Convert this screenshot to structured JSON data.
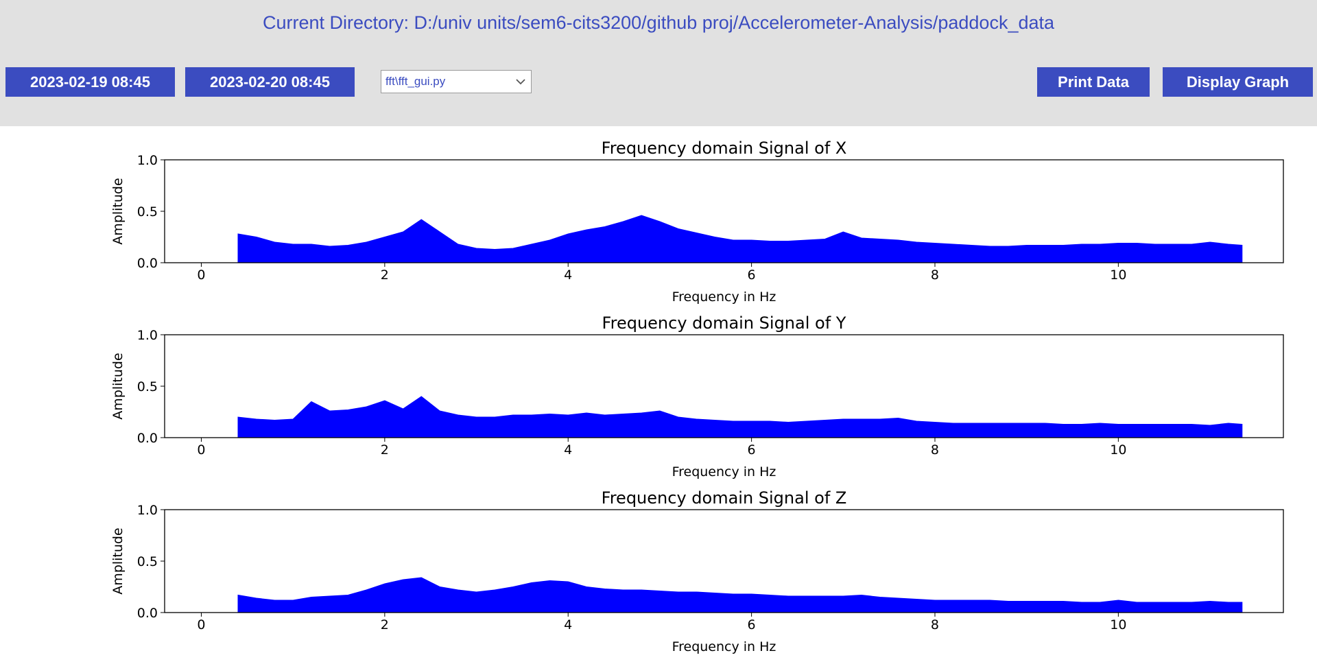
{
  "header": {
    "directory_label": "Current Directory: D:/univ units/sem6-cits3200/github proj/Accelerometer-Analysis/paddock_data"
  },
  "toolbar": {
    "start_date_button": "2023-02-19 08:45",
    "end_date_button": "2023-02-20 08:45",
    "script_select_value": "fft\\fft_gui.py",
    "print_button": "Print Data",
    "display_button": "Display Graph"
  },
  "colors": {
    "accent": "#3b4cc0",
    "toolbar_bg": "#e1e1e1",
    "series": "#0000ff"
  },
  "chart_data": [
    {
      "type": "area",
      "title": "Frequency domain Signal of X",
      "xlabel": "Frequency in Hz",
      "ylabel": "Amplitude",
      "xlim": [
        -0.4,
        11.8
      ],
      "ylim": [
        0,
        1.0
      ],
      "xticks": [
        0,
        2,
        4,
        6,
        8,
        10
      ],
      "yticks": [
        0.0,
        0.5,
        1.0
      ],
      "grid": false,
      "series": [
        {
          "x": [
            0.4,
            0.6,
            0.8,
            1.0,
            1.2,
            1.4,
            1.6,
            1.8,
            2.0,
            2.2,
            2.4,
            2.6,
            2.8,
            3.0,
            3.2,
            3.4,
            3.6,
            3.8,
            4.0,
            4.2,
            4.4,
            4.6,
            4.8,
            5.0,
            5.2,
            5.4,
            5.6,
            5.8,
            6.0,
            6.2,
            6.4,
            6.6,
            6.8,
            7.0,
            7.2,
            7.4,
            7.6,
            7.8,
            8.0,
            8.2,
            8.4,
            8.6,
            8.8,
            9.0,
            9.2,
            9.4,
            9.6,
            9.8,
            10.0,
            10.2,
            10.4,
            10.6,
            10.8,
            11.0,
            11.2,
            11.35
          ],
          "y": [
            0.28,
            0.25,
            0.2,
            0.18,
            0.18,
            0.16,
            0.17,
            0.2,
            0.25,
            0.3,
            0.42,
            0.3,
            0.18,
            0.14,
            0.13,
            0.14,
            0.18,
            0.22,
            0.28,
            0.32,
            0.35,
            0.4,
            0.46,
            0.4,
            0.33,
            0.29,
            0.25,
            0.22,
            0.22,
            0.21,
            0.21,
            0.22,
            0.23,
            0.3,
            0.24,
            0.23,
            0.22,
            0.2,
            0.19,
            0.18,
            0.17,
            0.16,
            0.16,
            0.17,
            0.17,
            0.17,
            0.18,
            0.18,
            0.19,
            0.19,
            0.18,
            0.18,
            0.18,
            0.2,
            0.18,
            0.17
          ]
        }
      ]
    },
    {
      "type": "area",
      "title": "Frequency domain Signal of Y",
      "xlabel": "Frequency in Hz",
      "ylabel": "Amplitude",
      "xlim": [
        -0.4,
        11.8
      ],
      "ylim": [
        0,
        1.0
      ],
      "xticks": [
        0,
        2,
        4,
        6,
        8,
        10
      ],
      "yticks": [
        0.0,
        0.5,
        1.0
      ],
      "grid": false,
      "series": [
        {
          "x": [
            0.4,
            0.6,
            0.8,
            1.0,
            1.2,
            1.4,
            1.6,
            1.8,
            2.0,
            2.2,
            2.4,
            2.6,
            2.8,
            3.0,
            3.2,
            3.4,
            3.6,
            3.8,
            4.0,
            4.2,
            4.4,
            4.6,
            4.8,
            5.0,
            5.2,
            5.4,
            5.6,
            5.8,
            6.0,
            6.2,
            6.4,
            6.6,
            6.8,
            7.0,
            7.2,
            7.4,
            7.6,
            7.8,
            8.0,
            8.2,
            8.4,
            8.6,
            8.8,
            9.0,
            9.2,
            9.4,
            9.6,
            9.8,
            10.0,
            10.2,
            10.4,
            10.6,
            10.8,
            11.0,
            11.2,
            11.35
          ],
          "y": [
            0.2,
            0.18,
            0.17,
            0.18,
            0.35,
            0.26,
            0.27,
            0.3,
            0.36,
            0.28,
            0.4,
            0.26,
            0.22,
            0.2,
            0.2,
            0.22,
            0.22,
            0.23,
            0.22,
            0.24,
            0.22,
            0.23,
            0.24,
            0.26,
            0.2,
            0.18,
            0.17,
            0.16,
            0.16,
            0.16,
            0.15,
            0.16,
            0.17,
            0.18,
            0.18,
            0.18,
            0.19,
            0.16,
            0.15,
            0.14,
            0.14,
            0.14,
            0.14,
            0.14,
            0.14,
            0.13,
            0.13,
            0.14,
            0.13,
            0.13,
            0.13,
            0.13,
            0.13,
            0.12,
            0.14,
            0.13
          ]
        }
      ]
    },
    {
      "type": "area",
      "title": "Frequency domain Signal of Z",
      "xlabel": "Frequency in Hz",
      "ylabel": "Amplitude",
      "xlim": [
        -0.4,
        11.8
      ],
      "ylim": [
        0,
        1.0
      ],
      "xticks": [
        0,
        2,
        4,
        6,
        8,
        10
      ],
      "yticks": [
        0.0,
        0.5,
        1.0
      ],
      "grid": false,
      "series": [
        {
          "x": [
            0.4,
            0.6,
            0.8,
            1.0,
            1.2,
            1.4,
            1.6,
            1.8,
            2.0,
            2.2,
            2.4,
            2.6,
            2.8,
            3.0,
            3.2,
            3.4,
            3.6,
            3.8,
            4.0,
            4.2,
            4.4,
            4.6,
            4.8,
            5.0,
            5.2,
            5.4,
            5.6,
            5.8,
            6.0,
            6.2,
            6.4,
            6.6,
            6.8,
            7.0,
            7.2,
            7.4,
            7.6,
            7.8,
            8.0,
            8.2,
            8.4,
            8.6,
            8.8,
            9.0,
            9.2,
            9.4,
            9.6,
            9.8,
            10.0,
            10.2,
            10.4,
            10.6,
            10.8,
            11.0,
            11.2,
            11.35
          ],
          "y": [
            0.17,
            0.14,
            0.12,
            0.12,
            0.15,
            0.16,
            0.17,
            0.22,
            0.28,
            0.32,
            0.34,
            0.25,
            0.22,
            0.2,
            0.22,
            0.25,
            0.29,
            0.31,
            0.3,
            0.25,
            0.23,
            0.22,
            0.22,
            0.21,
            0.2,
            0.2,
            0.19,
            0.18,
            0.18,
            0.17,
            0.16,
            0.16,
            0.16,
            0.16,
            0.17,
            0.15,
            0.14,
            0.13,
            0.12,
            0.12,
            0.12,
            0.12,
            0.11,
            0.11,
            0.11,
            0.11,
            0.1,
            0.1,
            0.12,
            0.1,
            0.1,
            0.1,
            0.1,
            0.11,
            0.1,
            0.1
          ]
        }
      ]
    }
  ]
}
